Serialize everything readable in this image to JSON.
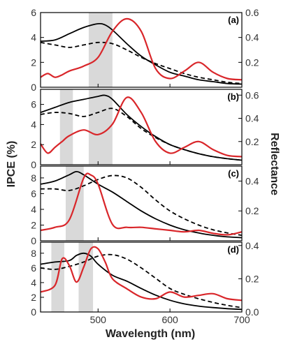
{
  "figure": {
    "xlabel": "Wavelength (nm)",
    "ylabel_left": "IPCE (%)",
    "ylabel_right": "Reflectance"
  },
  "colors": {
    "ipce_solid": "#000000",
    "ipce_dashed": "#000000",
    "reflectance": "#d9262a",
    "band": "#d9d9d9"
  },
  "chart_data": [
    {
      "type": "line",
      "panel": "(a)",
      "xlim": [
        420,
        700
      ],
      "ylim_left": [
        0,
        6
      ],
      "ylim_right": [
        0,
        0.6
      ],
      "xticks": [
        500,
        600,
        700
      ],
      "yticks_left": [
        0,
        2,
        4,
        6
      ],
      "yticks_right": [
        0.2,
        0.4,
        0.6
      ],
      "yticks_right_labels": [
        "0.2",
        "0.4",
        "0.6"
      ],
      "bands": [
        [
          487,
          520
        ]
      ],
      "series": [
        {
          "style": "solid",
          "axis": "left",
          "x": [
            420,
            440,
            460,
            480,
            500,
            510,
            520,
            540,
            560,
            580,
            600,
            620,
            640,
            660,
            680,
            700
          ],
          "y": [
            3.7,
            3.8,
            4.3,
            4.8,
            5.1,
            5.0,
            4.6,
            3.5,
            2.5,
            1.8,
            1.2,
            0.9,
            0.6,
            0.45,
            0.3,
            0.25
          ]
        },
        {
          "style": "dashed",
          "axis": "left",
          "x": [
            420,
            440,
            460,
            480,
            500,
            520,
            540,
            560,
            580,
            600,
            620,
            640,
            660,
            680,
            700
          ],
          "y": [
            3.6,
            3.4,
            3.2,
            3.4,
            3.6,
            3.5,
            3.0,
            2.4,
            1.9,
            1.5,
            1.1,
            0.8,
            0.6,
            0.4,
            0.3
          ]
        },
        {
          "style": "solid",
          "axis": "right",
          "x": [
            420,
            430,
            440,
            450,
            460,
            480,
            500,
            520,
            540,
            560,
            580,
            600,
            620,
            640,
            660,
            680,
            700
          ],
          "y": [
            0.08,
            0.11,
            0.08,
            0.1,
            0.13,
            0.17,
            0.24,
            0.45,
            0.55,
            0.45,
            0.15,
            0.07,
            0.13,
            0.2,
            0.12,
            0.07,
            0.06
          ]
        }
      ]
    },
    {
      "type": "line",
      "panel": "(b)",
      "xlim": [
        420,
        700
      ],
      "ylim_left": [
        0,
        7.5
      ],
      "ylim_right": [
        0,
        0.65
      ],
      "xticks": [
        500,
        600,
        700
      ],
      "yticks_left": [
        0,
        2,
        4,
        6
      ],
      "yticks_right": [
        0.2,
        0.4,
        0.6
      ],
      "yticks_right_labels": [
        "0.2",
        "0.4",
        "0.6"
      ],
      "bands": [
        [
          447,
          465
        ],
        [
          487,
          520
        ]
      ],
      "series": [
        {
          "style": "solid",
          "axis": "left",
          "x": [
            420,
            440,
            460,
            480,
            500,
            510,
            520,
            540,
            560,
            580,
            600,
            620,
            640,
            660,
            680,
            700
          ],
          "y": [
            5.2,
            5.7,
            6.2,
            6.5,
            6.8,
            6.9,
            6.5,
            5.0,
            3.8,
            2.8,
            2.0,
            1.5,
            1.1,
            0.8,
            0.6,
            0.45
          ]
        },
        {
          "style": "dashed",
          "axis": "left",
          "x": [
            420,
            440,
            460,
            480,
            500,
            520,
            540,
            560,
            580,
            600,
            620,
            640,
            660,
            680,
            700
          ],
          "y": [
            5.0,
            5.2,
            5.1,
            4.8,
            5.2,
            5.6,
            4.8,
            3.6,
            2.7,
            2.0,
            1.5,
            1.1,
            0.8,
            0.6,
            0.45
          ]
        },
        {
          "style": "solid",
          "axis": "right",
          "x": [
            420,
            430,
            440,
            450,
            460,
            480,
            500,
            520,
            540,
            560,
            580,
            600,
            620,
            640,
            660,
            680,
            700
          ],
          "y": [
            0.18,
            0.1,
            0.15,
            0.2,
            0.25,
            0.3,
            0.26,
            0.35,
            0.58,
            0.45,
            0.2,
            0.1,
            0.15,
            0.2,
            0.13,
            0.08,
            0.07
          ]
        }
      ]
    },
    {
      "type": "line",
      "panel": "(c)",
      "xlim": [
        420,
        700
      ],
      "ylim_left": [
        0,
        9.5
      ],
      "ylim_right": [
        0,
        0.5
      ],
      "xticks": [
        500,
        600,
        700
      ],
      "yticks_left": [
        0,
        2,
        4,
        6,
        8
      ],
      "yticks_right": [
        0.2,
        0.4
      ],
      "yticks_right_labels": [
        "0.2",
        "0.4"
      ],
      "bands": [
        [
          455,
          480
        ]
      ],
      "series": [
        {
          "style": "solid",
          "axis": "left",
          "x": [
            420,
            440,
            460,
            470,
            480,
            500,
            520,
            540,
            560,
            580,
            600,
            620,
            640,
            660,
            680,
            700
          ],
          "y": [
            7.2,
            7.6,
            8.4,
            8.8,
            8.4,
            7.2,
            6.2,
            5.0,
            3.8,
            2.8,
            2.0,
            1.4,
            1.0,
            0.7,
            0.5,
            0.4
          ]
        },
        {
          "style": "dashed",
          "axis": "left",
          "x": [
            420,
            440,
            460,
            480,
            500,
            520,
            540,
            560,
            580,
            600,
            620,
            640,
            660,
            680,
            700
          ],
          "y": [
            6.6,
            6.6,
            6.4,
            7.0,
            7.8,
            8.3,
            8.0,
            6.8,
            5.2,
            3.8,
            2.8,
            2.0,
            1.4,
            1.0,
            0.7
          ]
        },
        {
          "style": "solid",
          "axis": "right",
          "x": [
            420,
            440,
            460,
            480,
            490,
            500,
            520,
            540,
            560,
            580,
            600,
            620,
            640,
            660,
            680,
            700
          ],
          "y": [
            0.07,
            0.09,
            0.14,
            0.42,
            0.44,
            0.38,
            0.11,
            0.09,
            0.09,
            0.08,
            0.07,
            0.06,
            0.07,
            0.05,
            0.04,
            0.06
          ]
        }
      ]
    },
    {
      "type": "line",
      "panel": "(d)",
      "xlim": [
        420,
        700
      ],
      "ylim_left": [
        0,
        9.5
      ],
      "ylim_right": [
        0,
        0.42
      ],
      "xticks": [
        500,
        600,
        700
      ],
      "xticks_labels": [
        "500",
        "600",
        "700"
      ],
      "yticks_left": [
        0,
        2,
        4,
        6,
        8
      ],
      "yticks_right": [
        0.0,
        0.2,
        0.4
      ],
      "yticks_right_labels": [
        "0.0",
        "0.2",
        "0.4"
      ],
      "bands": [
        [
          435,
          453
        ],
        [
          473,
          493
        ]
      ],
      "series": [
        {
          "style": "solid",
          "axis": "left",
          "x": [
            420,
            440,
            460,
            470,
            480,
            490,
            500,
            520,
            540,
            560,
            580,
            600,
            620,
            640,
            660,
            680,
            700
          ],
          "y": [
            6.5,
            6.8,
            7.0,
            7.7,
            8.0,
            7.6,
            6.5,
            5.0,
            4.2,
            3.2,
            2.3,
            1.6,
            1.1,
            0.8,
            0.6,
            0.45,
            0.35
          ]
        },
        {
          "style": "dashed",
          "axis": "left",
          "x": [
            420,
            440,
            460,
            480,
            500,
            520,
            540,
            560,
            580,
            600,
            620,
            640,
            660,
            680,
            700
          ],
          "y": [
            6.0,
            5.8,
            6.2,
            6.8,
            7.6,
            7.8,
            7.2,
            6.0,
            4.6,
            3.2,
            2.4,
            1.8,
            1.3,
            0.9,
            0.6
          ]
        },
        {
          "style": "solid",
          "axis": "right",
          "x": [
            420,
            440,
            450,
            460,
            470,
            480,
            490,
            500,
            510,
            520,
            540,
            560,
            580,
            600,
            620,
            640,
            660,
            680,
            700
          ],
          "y": [
            0.12,
            0.16,
            0.32,
            0.28,
            0.18,
            0.27,
            0.38,
            0.38,
            0.3,
            0.2,
            0.14,
            0.09,
            0.08,
            0.12,
            0.09,
            0.1,
            0.11,
            0.08,
            0.07
          ]
        }
      ]
    }
  ]
}
